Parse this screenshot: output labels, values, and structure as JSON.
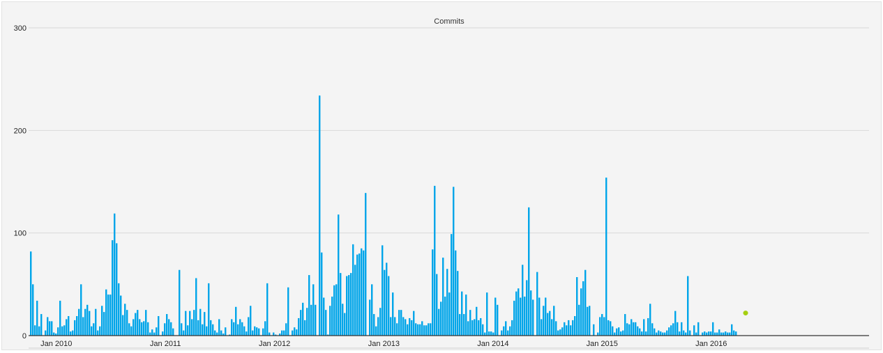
{
  "chart_data": {
    "type": "bar",
    "title": "Commits",
    "xlabel": "",
    "ylabel": "",
    "ylim": [
      0,
      300
    ],
    "yticks": [
      "0",
      "100",
      "200",
      "300"
    ],
    "xticks": [
      {
        "label": "Jan 2010",
        "date": "2010-01-01"
      },
      {
        "label": "Jan 2011",
        "date": "2011-01-01"
      },
      {
        "label": "Jan 2012",
        "date": "2012-01-01"
      },
      {
        "label": "Jan 2013",
        "date": "2013-01-01"
      },
      {
        "label": "Jan 2014",
        "date": "2014-01-01"
      },
      {
        "label": "Jan 2015",
        "date": "2015-01-01"
      },
      {
        "label": "Jan 2016",
        "date": "2016-01-01"
      }
    ],
    "x_interval": "week",
    "x_start": "2009-10-05",
    "grid": true,
    "bar_color": "#00a5e9",
    "marker_color": "#a5cf10",
    "highlight": {
      "date": "2016-04-25",
      "value": 22
    },
    "values": [
      82,
      50,
      10,
      34,
      9,
      21,
      0,
      5,
      18,
      14,
      14,
      3,
      2,
      8,
      34,
      9,
      10,
      16,
      19,
      4,
      5,
      15,
      19,
      26,
      50,
      18,
      26,
      30,
      24,
      9,
      12,
      26,
      5,
      9,
      29,
      23,
      45,
      40,
      40,
      93,
      119,
      90,
      51,
      39,
      20,
      31,
      25,
      12,
      9,
      16,
      22,
      25,
      16,
      13,
      14,
      25,
      13,
      3,
      6,
      3,
      8,
      19,
      0,
      4,
      12,
      21,
      16,
      13,
      7,
      0,
      0,
      64,
      12,
      5,
      24,
      10,
      24,
      16,
      25,
      56,
      15,
      26,
      11,
      23,
      9,
      51,
      15,
      11,
      5,
      3,
      16,
      5,
      2,
      8,
      0,
      1,
      16,
      13,
      28,
      11,
      16,
      13,
      9,
      4,
      18,
      29,
      5,
      9,
      8,
      7,
      0,
      7,
      14,
      51,
      3,
      0,
      3,
      1,
      0,
      2,
      5,
      5,
      12,
      47,
      0,
      5,
      8,
      6,
      17,
      25,
      32,
      15,
      27,
      59,
      30,
      50,
      30,
      0,
      234,
      81,
      37,
      25,
      1,
      29,
      38,
      49,
      50,
      118,
      61,
      31,
      22,
      58,
      59,
      61,
      89,
      69,
      79,
      80,
      85,
      83,
      139,
      0,
      35,
      50,
      21,
      9,
      18,
      27,
      88,
      64,
      71,
      58,
      18,
      42,
      18,
      12,
      25,
      25,
      18,
      16,
      11,
      17,
      15,
      24,
      12,
      11,
      11,
      14,
      10,
      10,
      12,
      12,
      84,
      146,
      60,
      26,
      33,
      76,
      38,
      65,
      42,
      99,
      145,
      83,
      63,
      21,
      43,
      21,
      40,
      14,
      25,
      15,
      16,
      28,
      15,
      17,
      11,
      3,
      42,
      4,
      4,
      3,
      37,
      30,
      0,
      5,
      9,
      14,
      5,
      9,
      15,
      34,
      43,
      46,
      37,
      69,
      38,
      54,
      125,
      44,
      35,
      0,
      62,
      37,
      16,
      29,
      37,
      22,
      24,
      16,
      29,
      14,
      5,
      6,
      8,
      13,
      10,
      15,
      10,
      15,
      19,
      57,
      30,
      46,
      53,
      64,
      28,
      29,
      0,
      11,
      0,
      3,
      18,
      21,
      18,
      154,
      15,
      14,
      9,
      3,
      7,
      8,
      4,
      5,
      21,
      12,
      11,
      16,
      13,
      13,
      9,
      7,
      4,
      16,
      4,
      17,
      31,
      12,
      7,
      3,
      5,
      4,
      3,
      3,
      5,
      8,
      10,
      12,
      24,
      13,
      4,
      13,
      5,
      3,
      58,
      5,
      0,
      10,
      3,
      13,
      0,
      3,
      4,
      3,
      4,
      4,
      13,
      3,
      3,
      6,
      3,
      3,
      4,
      3,
      3,
      11,
      5,
      4
    ]
  }
}
